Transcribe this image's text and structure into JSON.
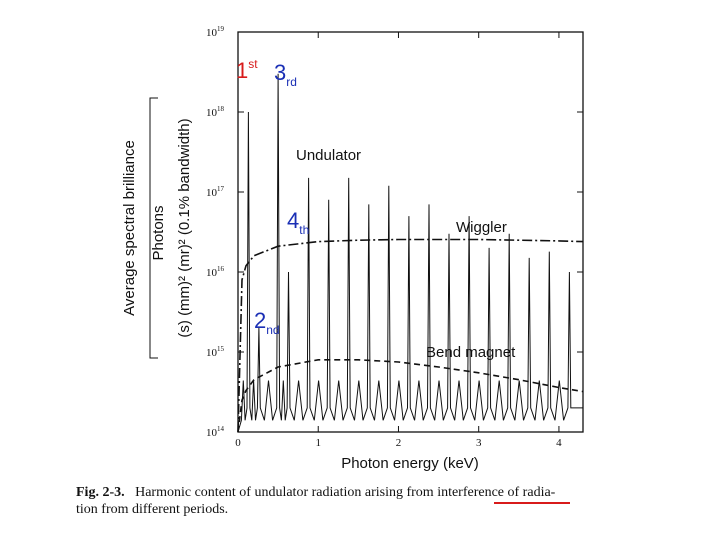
{
  "chart_data": {
    "type": "line",
    "title": "",
    "xlabel": "Photon energy (keV)",
    "ylabel_outer": "Average spectral brilliance",
    "ylabel_inner_top": "Photons",
    "ylabel_inner_bottom": "(s) (mm)² (mr)² (0.1% bandwidth)",
    "xlim": [
      0,
      4.3
    ],
    "ylim_log10": [
      14,
      19
    ],
    "yscale": "log",
    "x_ticks": [
      "0",
      "1",
      "2",
      "3",
      "4"
    ],
    "y_ticks": [
      {
        "base": "10",
        "exp": "19"
      },
      {
        "base": "10",
        "exp": "18"
      },
      {
        "base": "10",
        "exp": "17"
      },
      {
        "base": "10",
        "exp": "16"
      },
      {
        "base": "10",
        "exp": "15"
      },
      {
        "base": "10",
        "exp": "14"
      }
    ],
    "series": [
      {
        "name": "Undulator",
        "style": "solid",
        "peaks": [
          {
            "x": 0.13,
            "y": 1e+18
          },
          {
            "x": 0.26,
            "y": 2000000000000000.0
          },
          {
            "x": 0.5,
            "y": 3e+18
          },
          {
            "x": 0.63,
            "y": 1e+16
          },
          {
            "x": 0.88,
            "y": 1.5e+17
          },
          {
            "x": 1.13,
            "y": 8e+16
          },
          {
            "x": 1.38,
            "y": 1.5e+17
          },
          {
            "x": 1.63,
            "y": 7e+16
          },
          {
            "x": 1.88,
            "y": 1.2e+17
          },
          {
            "x": 2.13,
            "y": 5e+16
          },
          {
            "x": 2.38,
            "y": 7e+16
          },
          {
            "x": 2.63,
            "y": 3e+16
          },
          {
            "x": 2.88,
            "y": 5e+16
          },
          {
            "x": 3.13,
            "y": 2e+16
          },
          {
            "x": 3.38,
            "y": 3e+16
          },
          {
            "x": 3.63,
            "y": 1.5e+16
          },
          {
            "x": 3.88,
            "y": 1.8e+16
          },
          {
            "x": 4.13,
            "y": 1e+16
          }
        ],
        "floor": 200000000000000.0
      },
      {
        "name": "Wiggler",
        "style": "dash-dot",
        "x": [
          0.0,
          0.05,
          0.1,
          0.2,
          0.5,
          1.0,
          1.5,
          2.0,
          2.5,
          3.0,
          3.5,
          4.0,
          4.3
        ],
        "y": [
          100000000000000.0,
          8000000000000000.0,
          1.2e+16,
          1.6e+16,
          2.1e+16,
          2.4e+16,
          2.5e+16,
          2.55e+16,
          2.55e+16,
          2.55e+16,
          2.5e+16,
          2.45e+16,
          2.4e+16
        ]
      },
      {
        "name": "Bend  magnet",
        "style": "dashed",
        "x": [
          0.0,
          0.05,
          0.1,
          0.2,
          0.5,
          1.0,
          1.5,
          2.0,
          2.5,
          3.0,
          3.5,
          4.0,
          4.3
        ],
        "y": [
          100000000000000.0,
          250000000000000.0,
          330000000000000.0,
          450000000000000.0,
          650000000000000.0,
          800000000000000.0,
          800000000000000.0,
          750000000000000.0,
          650000000000000.0,
          550000000000000.0,
          450000000000000.0,
          360000000000000.0,
          320000000000000.0
        ]
      }
    ],
    "annotations": [
      {
        "text": "1",
        "sup": "st",
        "color": "#d81b1b"
      },
      {
        "text": "3",
        "sub": "rd",
        "color": "#1a2fb5"
      },
      {
        "text": "4",
        "sub": "th",
        "color": "#1a2fb5"
      },
      {
        "text": "2",
        "sub": "nd",
        "color": "#1a2fb5"
      }
    ],
    "grid": false,
    "legend": "inline labels"
  },
  "caption": {
    "prefix": "Fig. 2-3.",
    "text": "Harmonic content of undulator radiation arising from interference of radia-",
    "line2": "tion from different periods."
  }
}
